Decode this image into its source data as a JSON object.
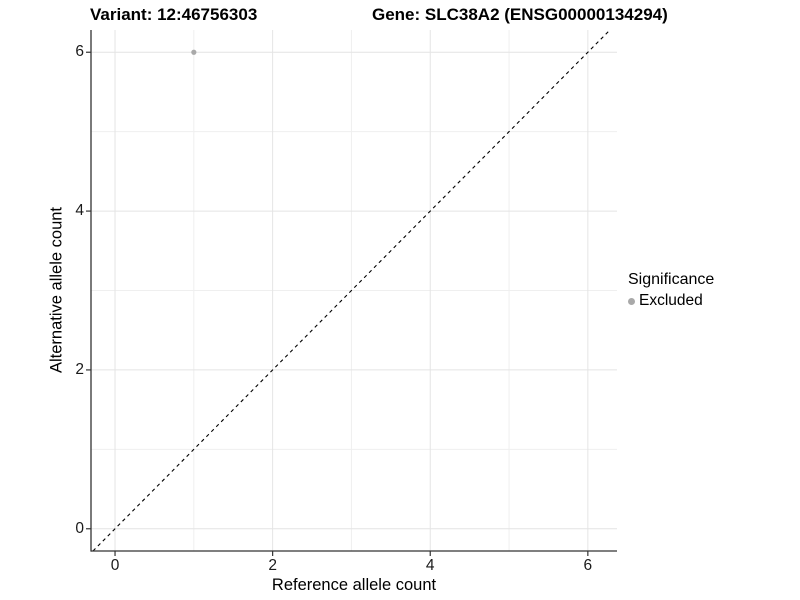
{
  "header": {
    "variant_title": "Variant: 12:46756303",
    "gene_title": "Gene: SLC38A2 (ENSG00000134294)"
  },
  "chart_data": {
    "type": "scatter",
    "title": "",
    "xlabel": "Reference allele count",
    "ylabel": "Alternative allele count",
    "x_ticks": [
      0,
      2,
      4,
      6
    ],
    "y_ticks": [
      0,
      2,
      4,
      6
    ],
    "x_minor_ticks": [
      1,
      3,
      5
    ],
    "y_minor_ticks": [
      1,
      3,
      5
    ],
    "xlim": [
      -0.305,
      6.37
    ],
    "ylim": [
      -0.28,
      6.28
    ],
    "grid": "on",
    "legend_position": "right",
    "series": [
      {
        "name": "Excluded",
        "points": [
          {
            "x": 1,
            "y": 6
          }
        ],
        "color": "#a9a9a9"
      }
    ],
    "reference_line": {
      "type": "identity",
      "slope": 1,
      "intercept": 0,
      "style": "dashed",
      "color": "#000000"
    },
    "colors": {
      "background": "#ffffff",
      "axis_line": "#333333",
      "grid_major": "#e4e4e4",
      "grid_minor": "#efefef",
      "point": "#a9a9a9",
      "tick_text": "#1a1a1a"
    }
  },
  "legend": {
    "title": "Significance",
    "items": [
      {
        "label": "Excluded",
        "marker": "circle-icon",
        "color": "#a9a9a9"
      }
    ]
  }
}
